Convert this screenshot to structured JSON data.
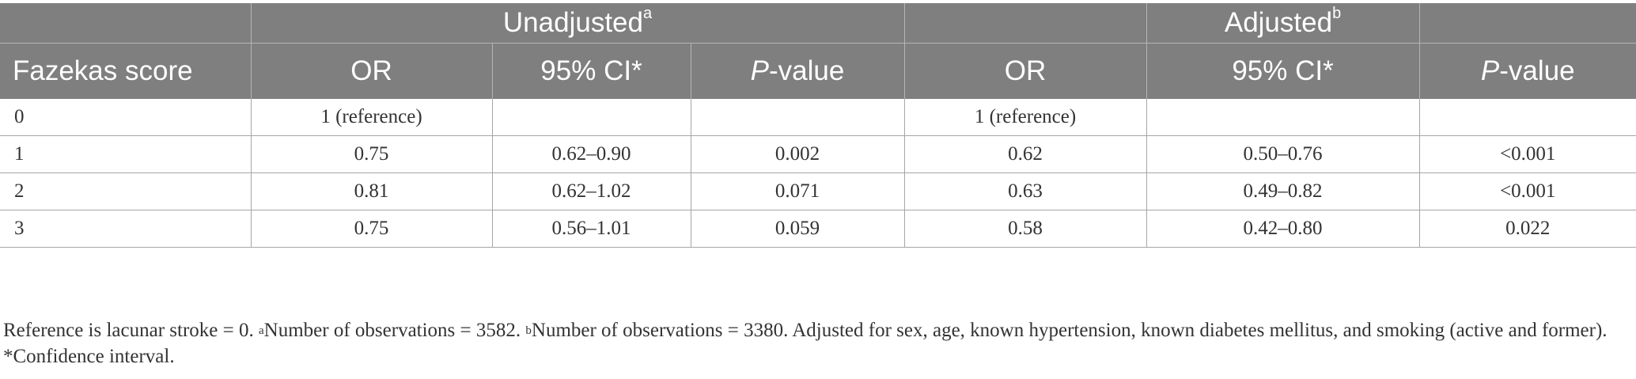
{
  "header": {
    "group_unadjusted": "Unadjusted",
    "group_unadjusted_sup": "a",
    "group_adjusted": "Adjusted",
    "group_adjusted_sup": "b",
    "col_score": "Fazekas score",
    "col_or": "OR",
    "col_ci": "95% CI*",
    "col_p_italic": "P",
    "col_p_rest": "-value"
  },
  "rows": [
    {
      "score": "0",
      "u_or": "1 (reference)",
      "u_ci": "",
      "u_p": "",
      "a_or": "1 (reference)",
      "a_ci": "",
      "a_p": ""
    },
    {
      "score": "1",
      "u_or": "0.75",
      "u_ci": "0.62–0.90",
      "u_p": "0.002",
      "a_or": "0.62",
      "a_ci": "0.50–0.76",
      "a_p": "<0.001"
    },
    {
      "score": "2",
      "u_or": "0.81",
      "u_ci": "0.62–1.02",
      "u_p": "0.071",
      "a_or": "0.63",
      "a_ci": "0.49–0.82",
      "a_p": "<0.001"
    },
    {
      "score": "3",
      "u_or": "0.75",
      "u_ci": "0.56–1.01",
      "u_p": "0.059",
      "a_or": "0.58",
      "a_ci": "0.42–0.80",
      "a_p": "0.022"
    }
  ],
  "footnote": {
    "part1": "Reference is lacunar stroke = 0. ",
    "sup_a": "a",
    "part2": "Number of observations = 3582. ",
    "sup_b": "b",
    "part3": "Number of observations = 3380. Adjusted for sex, age, known hypertension, known diabetes mellitus, and smoking (active and former). *Confidence interval."
  }
}
